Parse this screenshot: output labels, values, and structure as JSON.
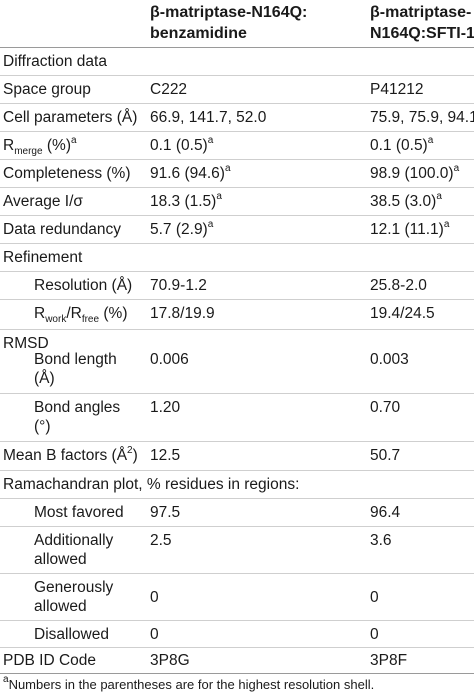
{
  "header": {
    "col1_line1": "β-matriptase-N164Q:",
    "col1_line2": "benzamidine",
    "col2_line1": "β-matriptase-",
    "col2_line2": "N164Q:SFTI-1"
  },
  "rows": {
    "diffraction": {
      "label": "Diffraction data"
    },
    "space_group": {
      "label": "Space group",
      "v1": "C222",
      "v2": "P41212"
    },
    "cell_params": {
      "label": "Cell parameters (Å)",
      "v1": "66.9, 141.7, 52.0",
      "v2": "75.9, 75.9, 94.1"
    },
    "rmerge": {
      "label_main": "R",
      "label_sub": "merge",
      "label_rest": " (%)",
      "label_sup": "a",
      "v1": "0.1 (0.5)",
      "v1_sup": "a",
      "v2": "0.1 (0.5)",
      "v2_sup": "a"
    },
    "completeness": {
      "label": "Completeness (%)",
      "v1": "91.6 (94.6)",
      "v1_sup": "a",
      "v2": "98.9 (100.0)",
      "v2_sup": "a"
    },
    "avg_i": {
      "label": "Average I/σ",
      "v1": "18.3 (1.5)",
      "v1_sup": "a",
      "v2": "38.5 (3.0)",
      "v2_sup": "a"
    },
    "redundancy": {
      "label": "Data redundancy",
      "v1": "5.7 (2.9)",
      "v1_sup": "a",
      "v2": "12.1 (11.1)",
      "v2_sup": "a"
    },
    "refinement": {
      "label": "Refinement"
    },
    "resolution": {
      "label": "Resolution (Å)",
      "v1": "70.9-1.2",
      "v2": "25.8-2.0"
    },
    "rwork": {
      "r1": "R",
      "sub1": "work",
      "slash": "/R",
      "sub2": "free",
      "rest": " (%)",
      "v1": "17.8/19.9",
      "v2": "19.4/24.5"
    },
    "rmsd": {
      "label": "RMSD"
    },
    "bond_length": {
      "label_line1": "Bond length",
      "label_line2": "(Å)",
      "v1": "0.006",
      "v2": "0.003"
    },
    "bond_angles": {
      "label_line1": "Bond angles",
      "label_line2": "(°)",
      "v1": "1.20",
      "v2": "0.70"
    },
    "mean_b": {
      "label_main": "Mean B factors (Å",
      "label_sup": "2",
      "label_end": ")",
      "v1": "12.5",
      "v2": "50.7"
    },
    "rama": {
      "label": "Ramachandran plot, % residues in regions:"
    },
    "most_favored": {
      "label": "Most favored",
      "v1": "97.5",
      "v2": "96.4"
    },
    "add_allowed": {
      "label_line1": "Additionally",
      "label_line2": "allowed",
      "v1": "2.5",
      "v2": "3.6"
    },
    "gen_allowed": {
      "label_line1": "Generously",
      "label_line2": "allowed",
      "v1": "0",
      "v2": "0"
    },
    "disallowed": {
      "label": "Disallowed",
      "v1": "0",
      "v2": "0"
    },
    "pdb": {
      "label": "PDB ID Code",
      "v1": "3P8G",
      "v2": "3P8F"
    }
  },
  "footnote": {
    "sup": "a",
    "text": "Numbers in the parentheses are for the highest resolution shell."
  }
}
